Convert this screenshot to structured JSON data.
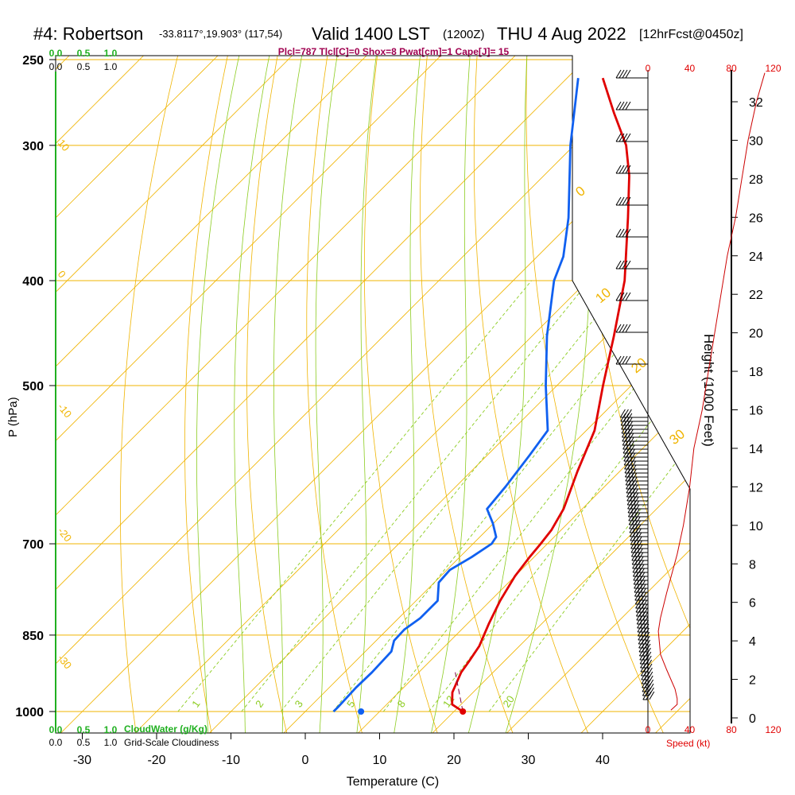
{
  "header": {
    "station": "#4: Robertson",
    "coords": "-33.8117°,19.903° (117,54)",
    "valid": "Valid 1400 LST",
    "zulu": "(1200Z)",
    "date": "THU 4 Aug 2022",
    "forecast": "[12hrFcst@0450z]",
    "indices": "Plcl=787 Tlcl[C]=0 Shox=8 Pwat[cm]=1 Cape[J]= 15"
  },
  "scales": {
    "cloudwater_top": [
      "0.0",
      "0.5",
      "1.0"
    ],
    "cloudiness_top": [
      "0.0",
      "0.5",
      "1.0"
    ],
    "cloudwater_bottom": [
      "0.0",
      "0.5",
      "1.0"
    ],
    "cloudiness_bottom": [
      "0.0",
      "0.5",
      "1.0"
    ],
    "cloudwater_label": "CloudWater (g/Kg)",
    "cloudiness_label": "Grid-Scale Cloudiness",
    "speed_ticks": [
      "0",
      "40",
      "80",
      "120"
    ],
    "speed_label": "Speed (kt)",
    "height_label": "Height (1000 Feet)",
    "height_ticks": [
      "0",
      "2",
      "4",
      "6",
      "8",
      "10",
      "12",
      "14",
      "16",
      "18",
      "20",
      "22",
      "24",
      "26",
      "28",
      "30",
      "32"
    ]
  },
  "colors": {
    "isobar": "#f0b400",
    "dry_adiabat": "#f0b400",
    "moist_adiabat": "#8ccc20",
    "mixing_ratio": "#8ccc20",
    "temperature": "#e00000",
    "dewpoint": "#1060f0",
    "cloudwater": "#20b020",
    "header_indices": "#a00050",
    "speed": "#e00000"
  },
  "chart_data": {
    "type": "skew-t",
    "title": "#4: Robertson Valid 1400 LST THU 4 Aug 2022",
    "xlabel": "Temperature (C)",
    "ylabel": "P (hPa)",
    "x_ticks": [
      -30,
      -20,
      -10,
      0,
      10,
      20,
      30,
      40
    ],
    "pressure_ticks": [
      250,
      300,
      400,
      500,
      700,
      850,
      1000
    ],
    "temperature_profile": {
      "pressure": [
        1000,
        985,
        960,
        920,
        900,
        870,
        830,
        790,
        750,
        720,
        700,
        680,
        650,
        600,
        550,
        500,
        450,
        400,
        350,
        320,
        300,
        280,
        260
      ],
      "temperature": [
        21.2,
        18.8,
        17.2,
        15.7,
        15.3,
        14.6,
        12.9,
        11.3,
        10.0,
        9.4,
        9.1,
        8.7,
        7.5,
        4.3,
        1.1,
        -3.8,
        -9.0,
        -15.0,
        -23.0,
        -28.5,
        -33.0,
        -39.0,
        -45.2
      ]
    },
    "dewpoint_profile": {
      "pressure": [
        1000,
        990,
        950,
        920,
        880,
        860,
        840,
        820,
        790,
        760,
        740,
        720,
        700,
        690,
        670,
        650,
        620,
        580,
        550,
        500,
        450,
        400,
        380,
        350,
        300,
        260
      ],
      "dewpoint": [
        3.8,
        3.8,
        3.6,
        3.7,
        3.5,
        2.4,
        2.3,
        2.9,
        2.9,
        0.6,
        0.4,
        1.6,
        2.5,
        2.2,
        -0.1,
        -2.8,
        -3.3,
        -4.3,
        -5.2,
        -11.5,
        -18.0,
        -24.5,
        -26.5,
        -31.0,
        -40.5,
        -48.5
      ]
    },
    "surface_dewpoint_marker": 7.5,
    "surface_temperature_marker": 21.2,
    "isotherm_labels": [
      "20",
      "10",
      "0",
      "-10",
      "-20",
      "-30"
    ],
    "mixing_ratio_labels": [
      "1",
      "2",
      "3",
      "5",
      "8",
      "12",
      "20"
    ],
    "theta_labels": [
      "0",
      "10",
      "20",
      "30"
    ],
    "wind_speed_profile": {
      "height_kft": [
        0.4,
        0.7,
        1.0,
        1.5,
        2.5,
        3.3,
        4.5,
        5.2,
        6.5,
        8.5,
        10.0,
        12.0,
        14.0,
        16.0,
        18.0,
        20.0,
        22.0,
        24.0,
        26.0,
        28.0,
        30.0,
        32.0,
        33.5
      ],
      "speed_kt": [
        22,
        28,
        28,
        26,
        18,
        12,
        10,
        12,
        18,
        28,
        34,
        40,
        44,
        52,
        58,
        64,
        70,
        76,
        84,
        90,
        96,
        104,
        112
      ]
    }
  }
}
